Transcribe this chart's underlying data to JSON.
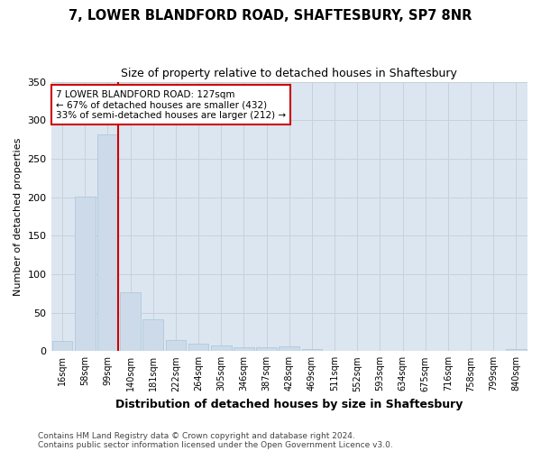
{
  "title1": "7, LOWER BLANDFORD ROAD, SHAFTESBURY, SP7 8NR",
  "title2": "Size of property relative to detached houses in Shaftesbury",
  "xlabel": "Distribution of detached houses by size in Shaftesbury",
  "ylabel": "Number of detached properties",
  "footnote1": "Contains HM Land Registry data © Crown copyright and database right 2024.",
  "footnote2": "Contains public sector information licensed under the Open Government Licence v3.0.",
  "bin_labels": [
    "16sqm",
    "58sqm",
    "99sqm",
    "140sqm",
    "181sqm",
    "222sqm",
    "264sqm",
    "305sqm",
    "346sqm",
    "387sqm",
    "428sqm",
    "469sqm",
    "511sqm",
    "552sqm",
    "593sqm",
    "634sqm",
    "675sqm",
    "716sqm",
    "758sqm",
    "799sqm",
    "840sqm"
  ],
  "bar_values": [
    13,
    201,
    281,
    76,
    41,
    14,
    10,
    7,
    5,
    5,
    6,
    3,
    0,
    0,
    0,
    0,
    0,
    0,
    0,
    0,
    3
  ],
  "bar_color": "#ccdaea",
  "bar_edge_color": "#a8c4d8",
  "grid_color": "#c8d0dc",
  "background_color": "#dce6f0",
  "property_bin_index": 2,
  "vline_color": "#cc0000",
  "annotation_line1": "7 LOWER BLANDFORD ROAD: 127sqm",
  "annotation_line2": "← 67% of detached houses are smaller (432)",
  "annotation_line3": "33% of semi-detached houses are larger (212) →",
  "annotation_box_color": "#ffffff",
  "annotation_box_edge": "#cc0000",
  "ylim": [
    0,
    350
  ],
  "yticks": [
    0,
    50,
    100,
    150,
    200,
    250,
    300,
    350
  ],
  "title1_fontsize": 10.5,
  "title2_fontsize": 9,
  "xlabel_fontsize": 9,
  "ylabel_fontsize": 8,
  "ytick_fontsize": 8,
  "xtick_fontsize": 7,
  "annotation_fontsize": 7.5,
  "footnote_fontsize": 6.5
}
